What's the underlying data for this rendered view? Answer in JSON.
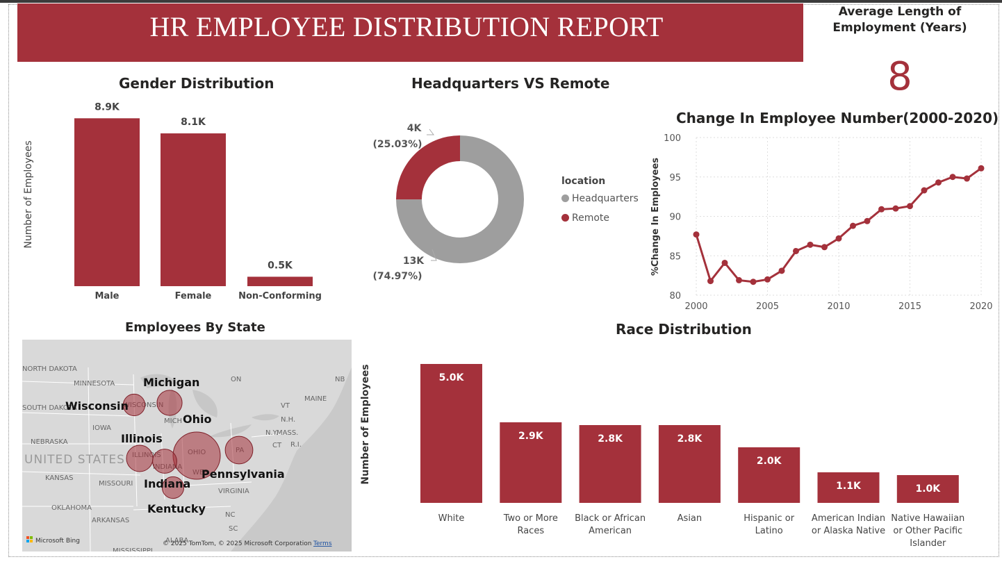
{
  "report": {
    "title": "HR EMPLOYEE DISTRIBUTION REPORT",
    "kpi_label": "Average Length of Employment (Years)",
    "kpi_value": "8"
  },
  "colors": {
    "accent": "#a4313b",
    "grey": "#9e9e9e",
    "map_land": "#d9d9d9"
  },
  "chart_data": [
    {
      "id": "gender",
      "type": "bar",
      "title": "Gender Distribution",
      "ylabel": "Number of Employees",
      "categories": [
        "Male",
        "Female",
        "Non-Conforming"
      ],
      "values": [
        8.9,
        8.1,
        0.5
      ],
      "value_labels": [
        "8.9K",
        "8.1K",
        "0.5K"
      ],
      "unit": "K employees",
      "ylim": [
        0,
        9.5
      ]
    },
    {
      "id": "location",
      "type": "pie",
      "title": "Headquarters VS Remote",
      "legend_title": "location",
      "legend_position": "right",
      "slices": [
        {
          "name": "Headquarters",
          "value": 13,
          "label": "13K",
          "pct_label": "(74.97%)",
          "share": 74.97,
          "color": "#9e9e9e"
        },
        {
          "name": "Remote",
          "value": 4,
          "label": "4K",
          "pct_label": "(25.03%)",
          "share": 25.03,
          "color": "#a4313b"
        }
      ]
    },
    {
      "id": "change",
      "type": "line",
      "title": "Change In Employee Number(2000-2020)",
      "xlabel": "",
      "ylabel": "%Change In Employees",
      "x": [
        2000,
        2001,
        2002,
        2003,
        2004,
        2005,
        2006,
        2007,
        2008,
        2009,
        2010,
        2011,
        2012,
        2013,
        2014,
        2015,
        2016,
        2017,
        2018,
        2019,
        2020
      ],
      "y": [
        87.7,
        81.8,
        84.1,
        81.9,
        81.7,
        82.0,
        83.1,
        85.6,
        86.4,
        86.1,
        87.2,
        88.8,
        89.4,
        90.9,
        91.0,
        91.3,
        93.3,
        94.3,
        95.0,
        94.8,
        96.1
      ],
      "xticks": [
        2000,
        2005,
        2010,
        2015,
        2020
      ],
      "yticks": [
        80,
        85,
        90,
        95,
        100
      ],
      "xlim": [
        2000,
        2020
      ],
      "ylim": [
        80,
        100
      ],
      "grid": true
    },
    {
      "id": "race",
      "type": "bar",
      "title": "Race Distribution",
      "ylabel": "Number of Employees",
      "categories": [
        [
          "White"
        ],
        [
          "Two or More",
          "Races"
        ],
        [
          "Black or African",
          "American"
        ],
        [
          "Asian"
        ],
        [
          "Hispanic or",
          "Latino"
        ],
        [
          "American Indian",
          "or Alaska Native"
        ],
        [
          "Native Hawaiian",
          "or Other Pacific",
          "Islander"
        ]
      ],
      "values": [
        5.0,
        2.9,
        2.8,
        2.8,
        2.0,
        1.1,
        1.0
      ],
      "value_labels": [
        "5.0K",
        "2.9K",
        "2.8K",
        "2.8K",
        "2.0K",
        "1.1K",
        "1.0K"
      ],
      "unit": "K employees",
      "ylim": [
        0,
        5.2
      ]
    }
  ],
  "map": {
    "title": "Employees By State",
    "bubbles": [
      {
        "state": "Ohio",
        "size": 1.0
      },
      {
        "state": "Pennsylvania",
        "size": 0.28
      },
      {
        "state": "Michigan",
        "size": 0.22
      },
      {
        "state": "Illinois",
        "size": 0.25
      },
      {
        "state": "Indiana",
        "size": 0.2
      },
      {
        "state": "Wisconsin",
        "size": 0.15
      },
      {
        "state": "Kentucky",
        "size": 0.15
      }
    ],
    "labels": {
      "michigan": "Michigan",
      "wisconsin": "Wisconsin",
      "ohio": "Ohio",
      "illinois": "Illinois",
      "indiana": "Indiana",
      "pennsylvania": "Pennsylvania",
      "kentucky": "Kentucky"
    },
    "basemap_labels": {
      "north_dakota": "NORTH DAKOTA",
      "minnesota": "MINNESOTA",
      "south_dakota": "SOUTH DAKOTA",
      "iowa": "IOWA",
      "nebraska": "NEBRASKA",
      "united_states": "UNITED STATES",
      "kansas": "KANSAS",
      "missouri": "MISSOURI",
      "oklahoma": "OKLAHOMA",
      "arkansas": "ARKANSAS",
      "alabama": "ALABA",
      "mississippi": "MISSISSIPPI",
      "virginia": "VIRGINIA",
      "nc": "NC",
      "sc": "SC",
      "wisconsin_basemap": "WISCONSIN",
      "michigan_basemap": "MICH",
      "illinois_basemap": "ILLINOIS",
      "indiana_basemap": "INDIANA",
      "ohio_basemap": "OHIO",
      "pa": "PA",
      "wv": "WES",
      "ny": "N.Y.",
      "vt": "VT",
      "maine": "MAINE",
      "nb": "NB",
      "nh": "N.H.",
      "mass": "MASS.",
      "ri": "R.I.",
      "ct": "CT",
      "ontario": "ON"
    },
    "attribution": "© 2025 TomTom, © 2025 Microsoft Corporation",
    "terms": "Terms",
    "bing": "Microsoft Bing"
  }
}
